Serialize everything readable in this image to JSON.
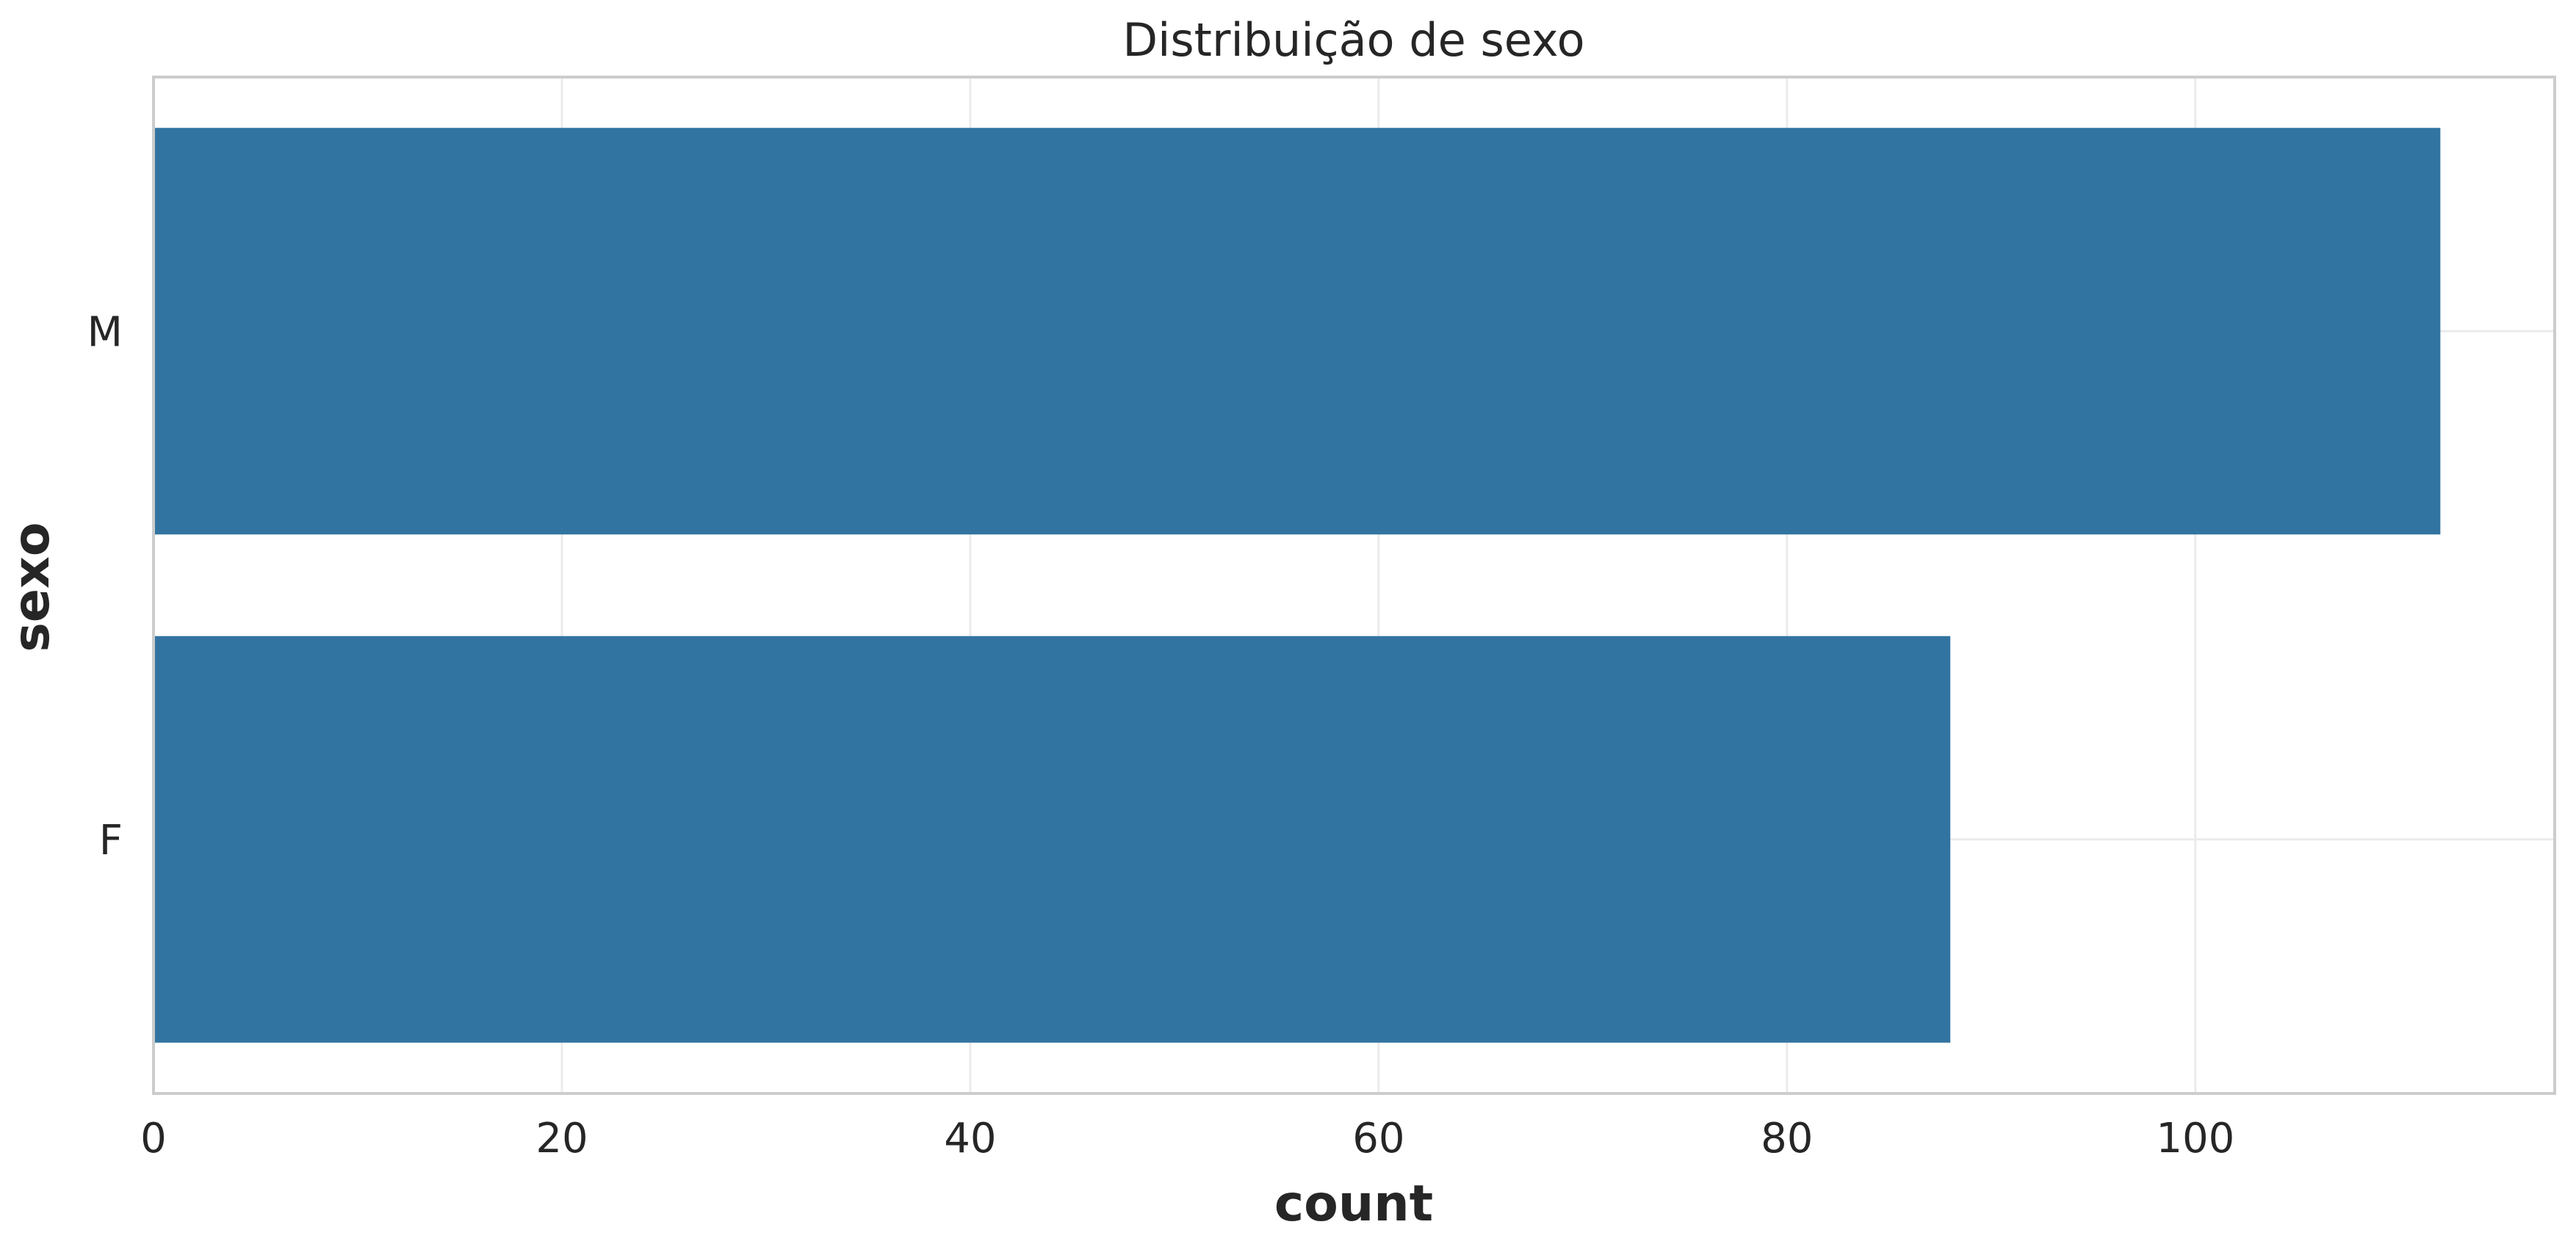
{
  "chart_data": {
    "type": "bar",
    "orientation": "horizontal",
    "title": "Distribuição de sexo",
    "xlabel": "count",
    "ylabel": "sexo",
    "categories": [
      "M",
      "F"
    ],
    "values": [
      112,
      88
    ],
    "xlim": [
      0,
      117.6
    ],
    "xticks": [
      0,
      20,
      40,
      60,
      80,
      100
    ],
    "xtick_labels": [
      "0",
      "20",
      "40",
      "60",
      "80",
      "100"
    ],
    "grid": true,
    "legend": "none",
    "colors": {
      "bar": "#3274a1",
      "grid": "#ebebeb",
      "frame": "#cccccc",
      "text": "#262626"
    }
  }
}
